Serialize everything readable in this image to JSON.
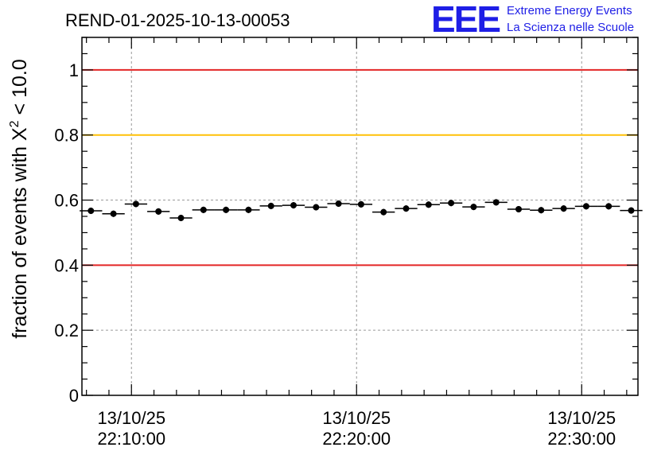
{
  "chart_data": {
    "type": "scatter",
    "title": "REND-01-2025-10-13-00053",
    "ylabel_prefix": "fraction of events with ",
    "ylabel_symbol": "X",
    "ylabel_sup": "2",
    "ylabel_suffix": " < 10.0",
    "ylim": [
      0,
      1.1
    ],
    "y_ticks": [
      0,
      0.2,
      0.4,
      0.6,
      0.8,
      1
    ],
    "y_tick_labels": [
      "0",
      "0.2",
      "0.4",
      "0.6",
      "0.8",
      "1"
    ],
    "x_range_minutes": [
      -2.2,
      22.5
    ],
    "x_major_ticks": [
      0,
      10,
      20
    ],
    "x_tick_labels": [
      {
        "date": "13/10/25",
        "time": "22:10:00"
      },
      {
        "date": "13/10/25",
        "time": "22:20:00"
      },
      {
        "date": "13/10/25",
        "time": "22:30:00"
      }
    ],
    "bin_width_minutes": 1,
    "x_minutes": [
      -1.8,
      -0.8,
      0.2,
      1.2,
      2.2,
      3.2,
      4.2,
      5.2,
      6.2,
      7.2,
      8.2,
      9.2,
      10.2,
      11.2,
      12.2,
      13.2,
      14.2,
      15.2,
      16.2,
      17.2,
      18.2,
      19.2,
      20.2,
      21.2,
      22.2
    ],
    "values": [
      0.567,
      0.558,
      0.588,
      0.565,
      0.545,
      0.57,
      0.57,
      0.57,
      0.582,
      0.584,
      0.578,
      0.589,
      0.587,
      0.563,
      0.574,
      0.586,
      0.591,
      0.579,
      0.593,
      0.572,
      0.569,
      0.574,
      0.581,
      0.581,
      0.568
    ],
    "reference_lines": [
      {
        "value": 1.0,
        "color": "#e32626"
      },
      {
        "value": 0.8,
        "color": "#ffc107"
      },
      {
        "value": 0.4,
        "color": "#e32626"
      }
    ],
    "grid": true
  },
  "logo": {
    "mark": "EEE",
    "line1": "Extreme Energy Events",
    "line2": "La Scienza nelle Scuole"
  }
}
